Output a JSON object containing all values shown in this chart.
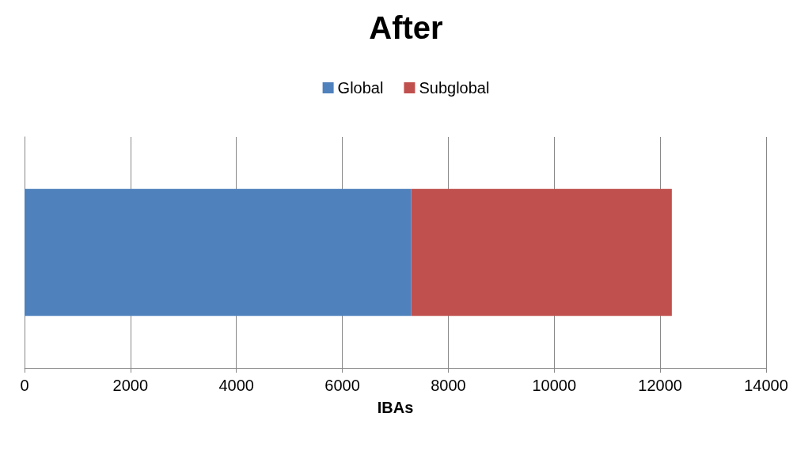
{
  "chart_data": {
    "type": "bar",
    "title": "After",
    "xlabel": "IBAs",
    "orientation": "horizontal",
    "stacked": true,
    "categories": [
      null
    ],
    "series": [
      {
        "name": "Global",
        "color": "#4f81bd",
        "values": [
          7300
        ]
      },
      {
        "name": "Subglobal",
        "color": "#c0504d",
        "values": [
          4920
        ]
      }
    ],
    "xlim": [
      0,
      14000
    ],
    "xticks": [
      0,
      2000,
      4000,
      6000,
      8000,
      10000,
      12000,
      14000
    ],
    "grid": "x",
    "legend": "top"
  }
}
